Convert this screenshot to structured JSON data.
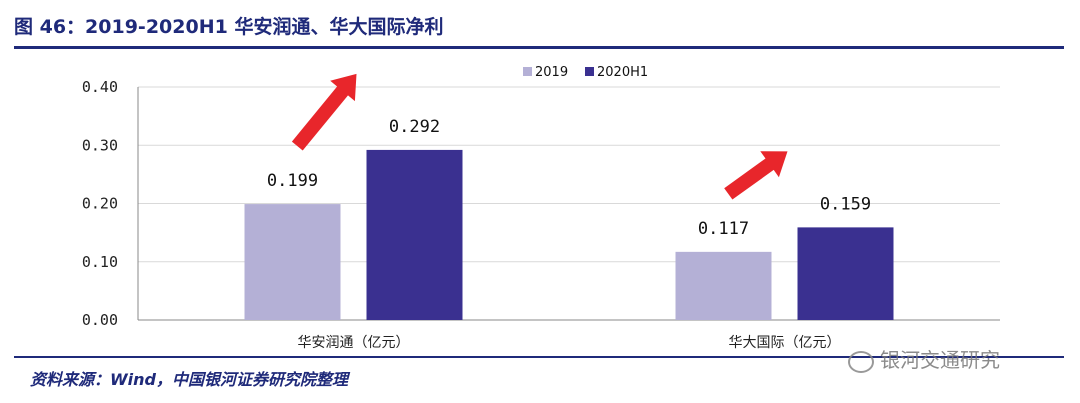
{
  "header": {
    "title": "图 46：2019-2020H1 华安润通、华大国际净利"
  },
  "footer": {
    "source": "资料来源：Wind，中国银河证券研究院整理",
    "watermark": "银河交通研究"
  },
  "colors": {
    "series_2019": "#b4b0d6",
    "series_2020H1": "#3a3090",
    "arrow": "#e8262b",
    "brand": "#1f2a7a"
  },
  "chart_data": {
    "type": "bar",
    "categories": [
      "华安润通（亿元）",
      "华大国际（亿元）"
    ],
    "series": [
      {
        "name": "2019",
        "values": [
          0.199,
          0.117
        ],
        "labels": [
          "0.199",
          "0.117"
        ]
      },
      {
        "name": "2020H1",
        "values": [
          0.292,
          0.159
        ],
        "labels": [
          "0.292",
          "0.159"
        ]
      }
    ],
    "yticks": [
      "0.00",
      "0.10",
      "0.20",
      "0.30",
      "0.40"
    ],
    "ylim": [
      0,
      0.4
    ],
    "legend_position": "top-right",
    "grid": true
  }
}
